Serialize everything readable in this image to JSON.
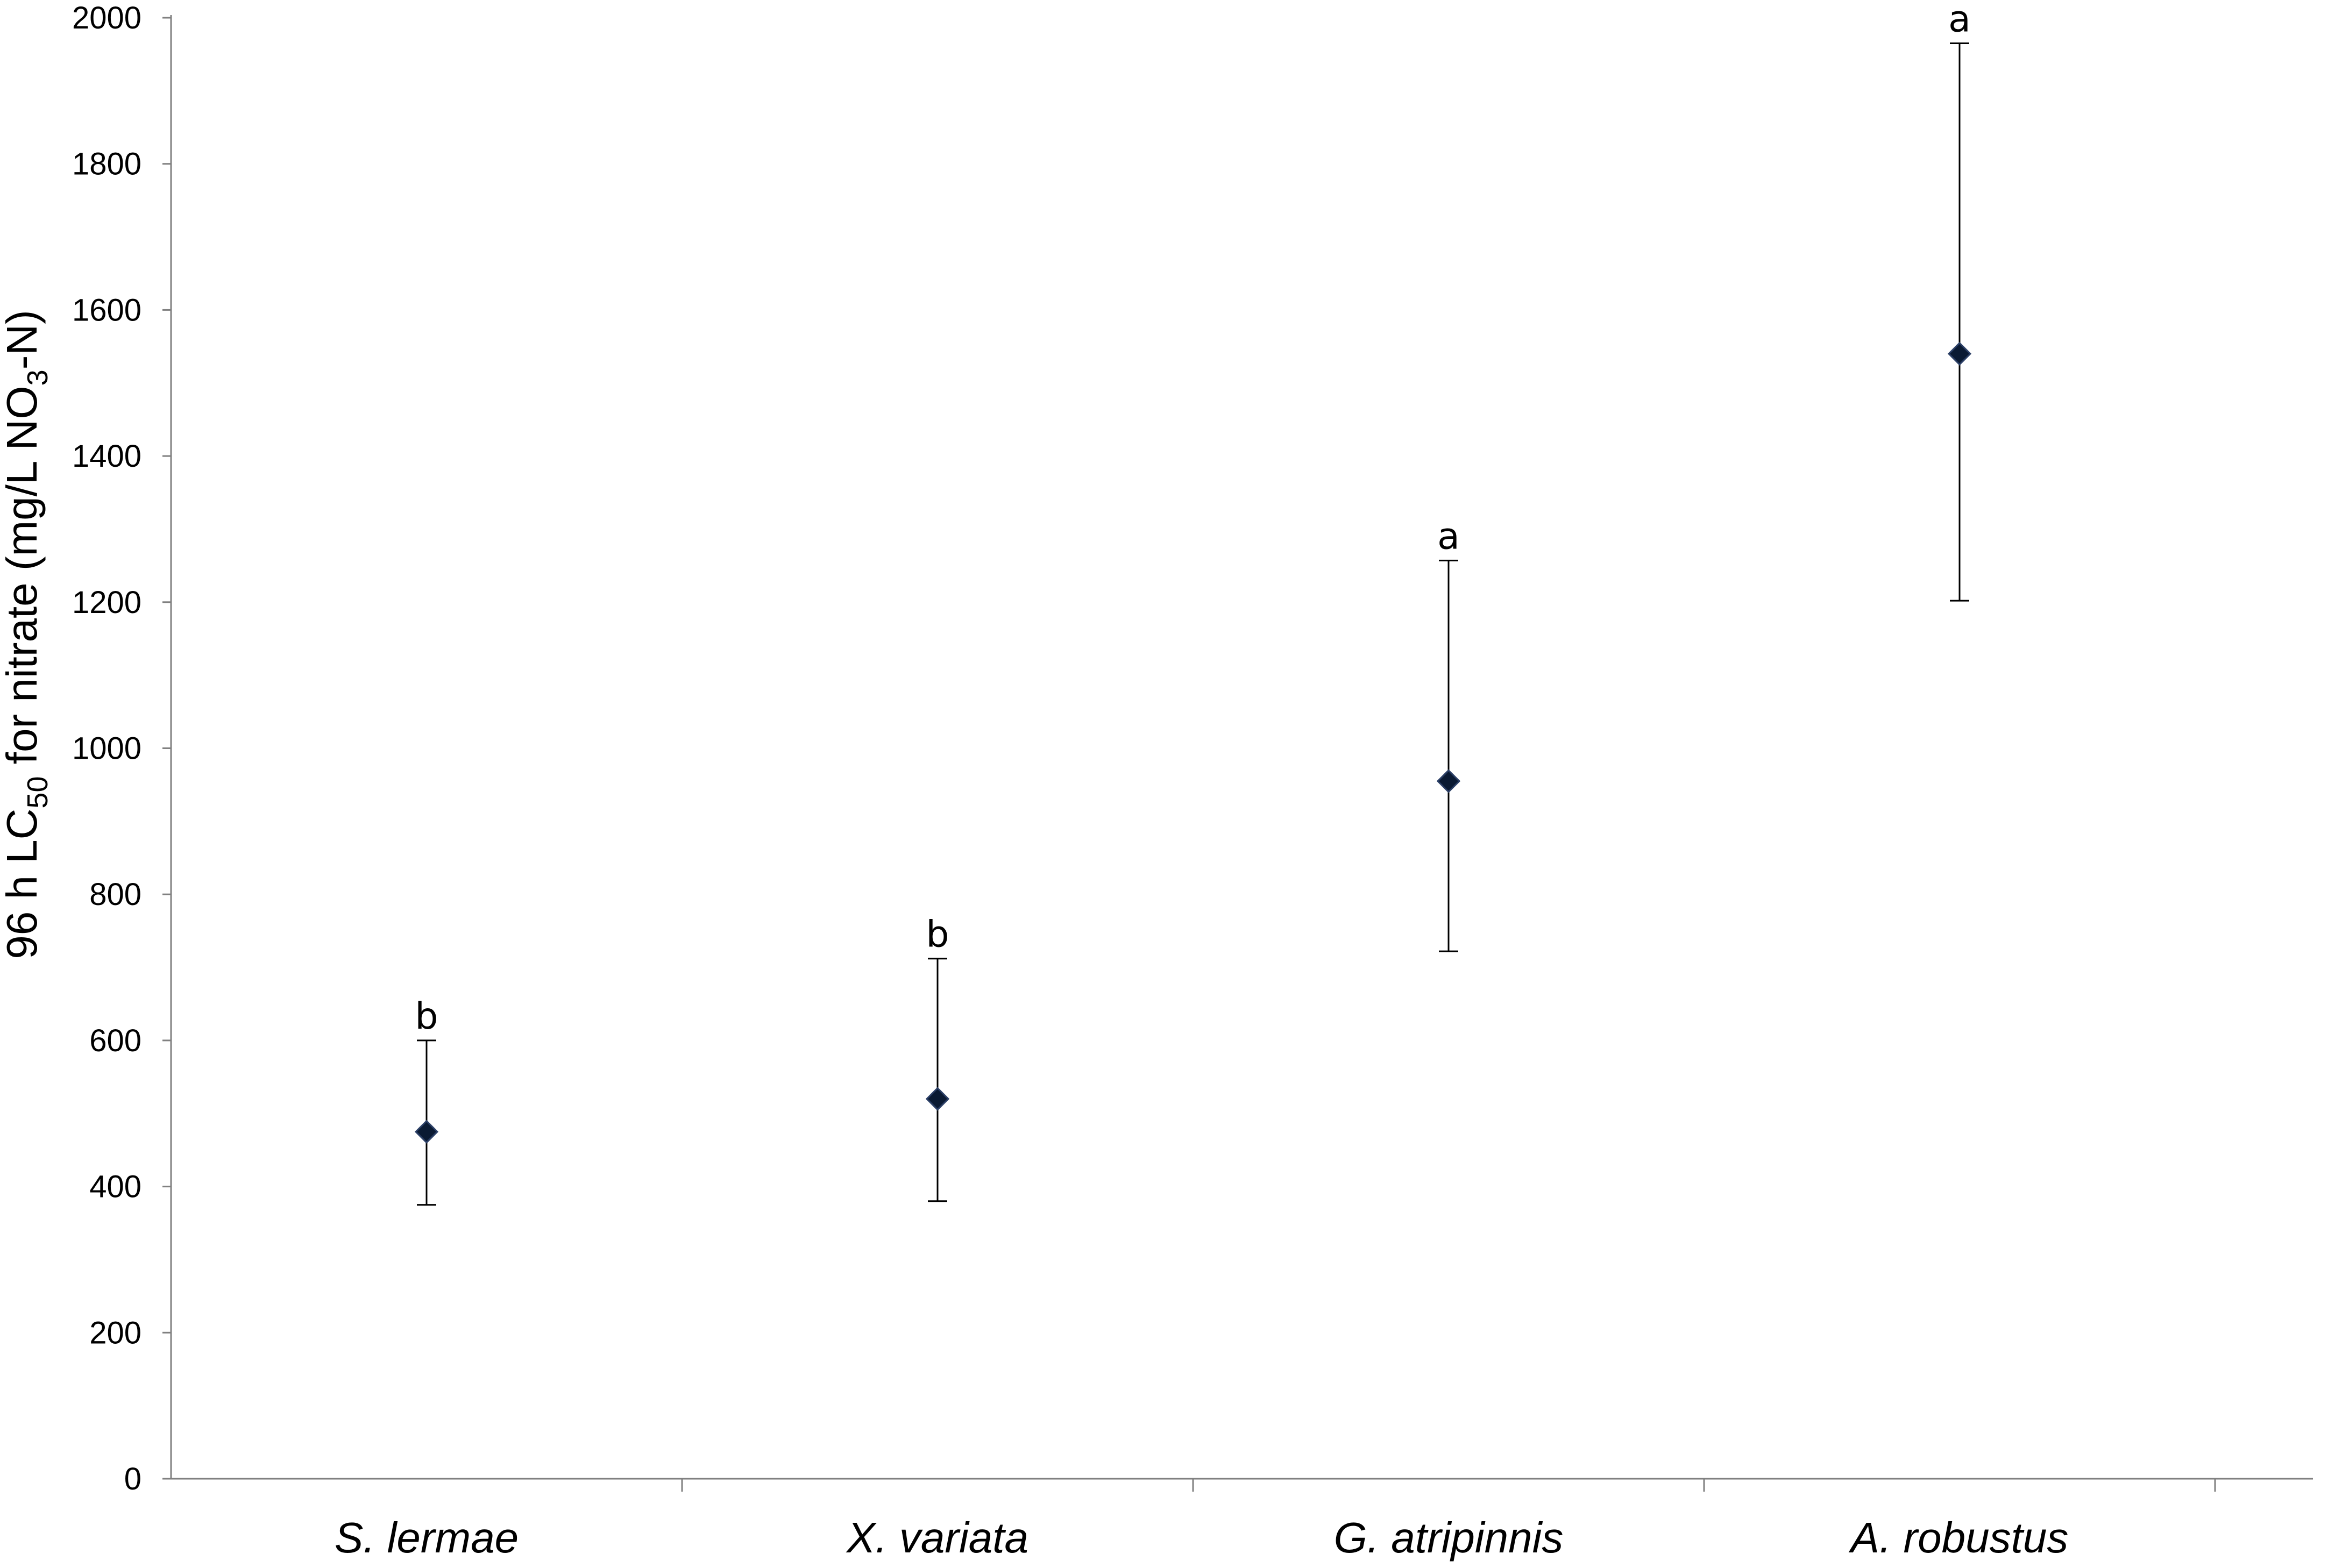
{
  "chart_data": {
    "type": "scatter",
    "categories": [
      "S. lermae",
      "X. variata",
      "G. atripinnis",
      "A. robustus"
    ],
    "values": [
      475,
      520,
      955,
      1540
    ],
    "error_low": [
      375,
      380,
      722,
      1202
    ],
    "error_high": [
      600,
      712,
      1257,
      1965
    ],
    "significance": [
      "b",
      "b",
      "a",
      "a"
    ],
    "ylabel_parts": {
      "pre": "96 h LC",
      "sub1": "50",
      "mid": " for  nitrate (mg/L NO",
      "sub2": "3",
      "post": "-N)"
    },
    "ylim": [
      0,
      2000
    ],
    "yticks": [
      0,
      200,
      400,
      600,
      800,
      1000,
      1200,
      1400,
      1600,
      1800,
      2000
    ],
    "grid": false,
    "marker": "diamond",
    "colors": {
      "marker_fill": "#0a1a33",
      "marker_edge": "#2b3f66",
      "axis": "#808080",
      "error_bar": "#000000"
    }
  }
}
